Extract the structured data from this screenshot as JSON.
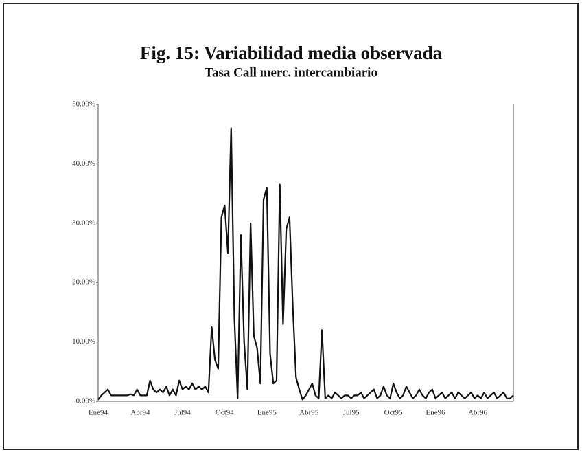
{
  "chart_data": {
    "type": "line",
    "title": "Fig. 15: Variabilidad media observada",
    "subtitle": "Tasa Call merc. intercambiario",
    "categories": [
      "Ene94",
      null,
      null,
      null,
      null,
      null,
      null,
      null,
      null,
      null,
      null,
      null,
      null,
      "Abr94",
      null,
      null,
      null,
      null,
      null,
      null,
      null,
      null,
      null,
      null,
      null,
      null,
      "Jul94",
      null,
      null,
      null,
      null,
      null,
      null,
      null,
      null,
      null,
      null,
      null,
      null,
      "Oct94",
      null,
      null,
      null,
      null,
      null,
      null,
      null,
      null,
      null,
      null,
      null,
      null,
      "Ene95",
      null,
      null,
      null,
      null,
      null,
      null,
      null,
      null,
      null,
      null,
      null,
      null,
      "Abr95",
      null,
      null,
      null,
      null,
      null,
      null,
      null,
      null,
      null,
      null,
      null,
      null,
      "Jul95",
      null,
      null,
      null,
      null,
      null,
      null,
      null,
      null,
      null,
      null,
      null,
      null,
      "Oct95",
      null,
      null,
      null,
      null,
      null,
      null,
      null,
      null,
      null,
      null,
      null,
      null,
      "Ene96",
      null,
      null,
      null,
      null,
      null,
      null,
      null,
      null,
      null,
      null,
      null,
      null,
      "Abr96",
      null,
      null,
      null,
      null,
      null,
      null,
      null,
      null,
      null,
      null,
      null
    ],
    "values": [
      0.3,
      1,
      1.5,
      2,
      1,
      1,
      1,
      1,
      1,
      1,
      1.2,
      1,
      2,
      1,
      1,
      1,
      3.5,
      2,
      1.5,
      2,
      1.5,
      2.5,
      1,
      2,
      1,
      3.5,
      2,
      2.5,
      2,
      3,
      2,
      2.5,
      2,
      2.5,
      1.5,
      12.5,
      7,
      5.5,
      31,
      33,
      25,
      46,
      14,
      0.5,
      28,
      10,
      2,
      30,
      11,
      9,
      3,
      34,
      36,
      8,
      3,
      3.5,
      36.5,
      13,
      29,
      31,
      16,
      4,
      2,
      0.3,
      1,
      2,
      3,
      1,
      0.5,
      12,
      0.5,
      1,
      0.5,
      1.5,
      1,
      0.5,
      1,
      1,
      0.5,
      1,
      1,
      1.5,
      0.5,
      1,
      1.5,
      2,
      0.5,
      1,
      2.5,
      1,
      0.5,
      3,
      1.5,
      0.5,
      1,
      2.5,
      1.5,
      0.5,
      1,
      2,
      1,
      0.5,
      1.5,
      2,
      0.5,
      1,
      1.5,
      0.5,
      1,
      1.5,
      0.5,
      1.5,
      1,
      0.5,
      1,
      1.5,
      0.5,
      1,
      0.5,
      1.5,
      0.5,
      1,
      1.5,
      0.5,
      1,
      1.5,
      0.5,
      0.5,
      1
    ],
    "color": "#111111",
    "ylim": [
      0,
      50
    ],
    "yticks": [
      {
        "value": 0,
        "label": "0.00%"
      },
      {
        "value": 10,
        "label": "10.00%"
      },
      {
        "value": 20,
        "label": "20.00%"
      },
      {
        "value": 30,
        "label": "30.00%"
      },
      {
        "value": 40,
        "label": "40.00%"
      },
      {
        "value": 50,
        "label": "50.00%"
      }
    ]
  }
}
